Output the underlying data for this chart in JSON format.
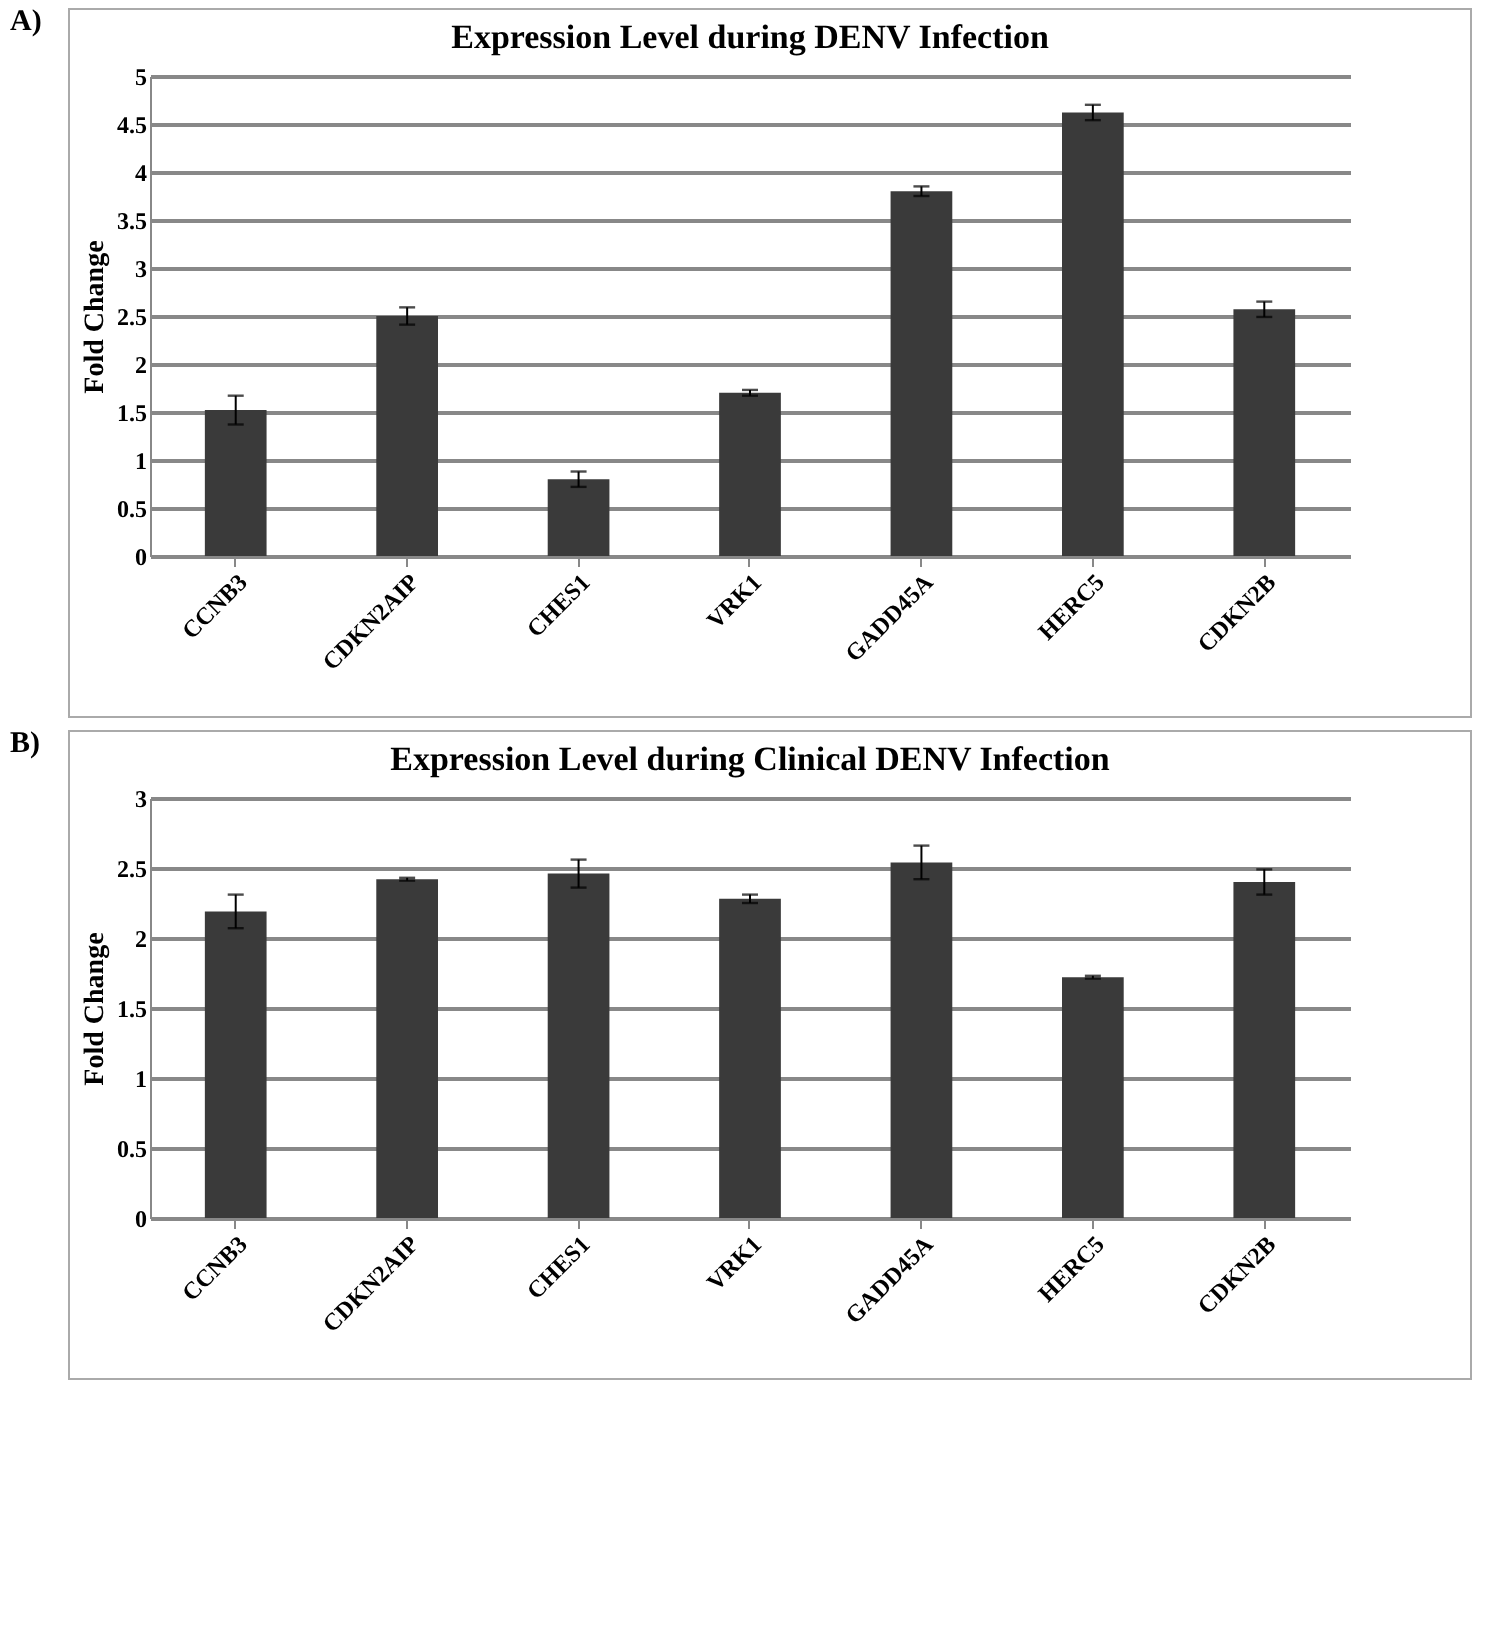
{
  "chart_data": [
    {
      "type": "bar",
      "title": "Expression Level during DENV Infection",
      "ylabel": "Fold Change",
      "annotations": [
        "A)"
      ],
      "categories": [
        "CCNB3",
        "CDKN2AIP",
        "CHES1",
        "VRK1",
        "GADD45A",
        "HERC5",
        "CDKN2B"
      ],
      "values": [
        1.52,
        2.5,
        0.8,
        1.7,
        3.8,
        4.62,
        2.57
      ],
      "errors": [
        0.15,
        0.09,
        0.08,
        0.03,
        0.05,
        0.08,
        0.08
      ],
      "color": "#3a3a3a",
      "ylim": [
        0,
        5
      ],
      "yticks": [
        0,
        0.5,
        1,
        1.5,
        2,
        2.5,
        3,
        3.5,
        4,
        4.5,
        5
      ],
      "grid": "y"
    },
    {
      "type": "bar",
      "title": "Expression Level during Clinical DENV Infection",
      "ylabel": "Fold Change",
      "annotations": [
        "B)"
      ],
      "categories": [
        "CCNB3",
        "CDKN2AIP",
        "CHES1",
        "VRK1",
        "GADD45A",
        "HERC5",
        "CDKN2B"
      ],
      "values": [
        2.19,
        2.42,
        2.46,
        2.28,
        2.54,
        1.72,
        2.4
      ],
      "errors": [
        0.12,
        0.01,
        0.1,
        0.03,
        0.12,
        0.01,
        0.09
      ],
      "color": "#3a3a3a",
      "ylim": [
        0,
        3
      ],
      "yticks": [
        0,
        0.5,
        1,
        1.5,
        2,
        2.5,
        3
      ],
      "grid": "y"
    }
  ]
}
